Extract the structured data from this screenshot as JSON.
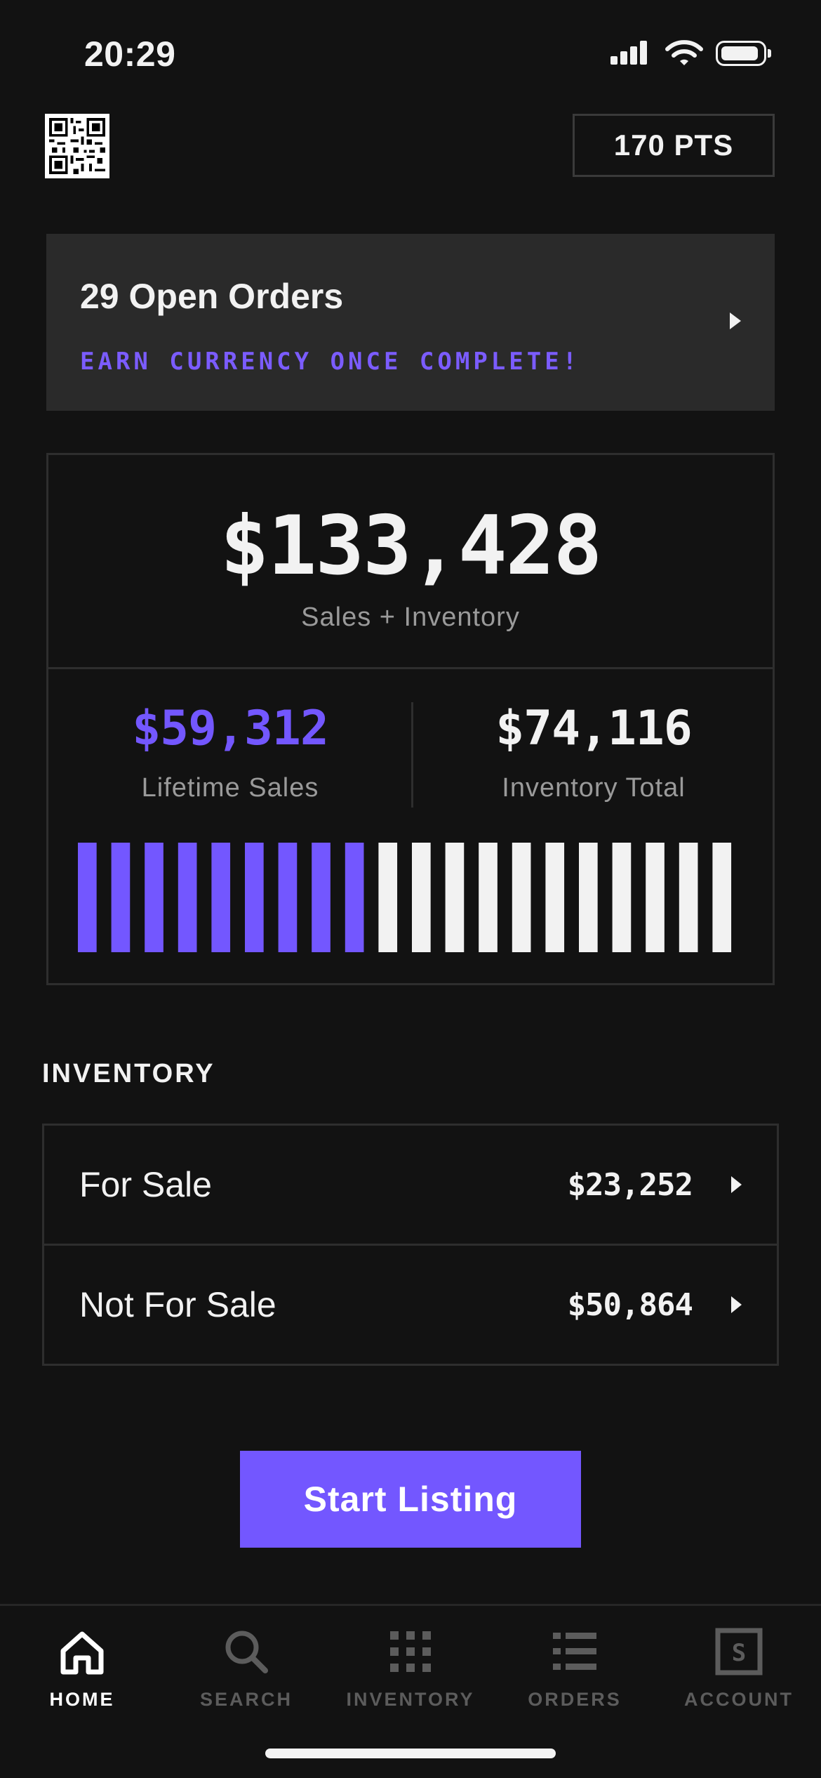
{
  "status_bar": {
    "time": "20:29"
  },
  "header": {
    "points": "170 PTS"
  },
  "orders_banner": {
    "title": "29 Open Orders",
    "subtitle": "EARN CURRENCY ONCE COMPLETE!"
  },
  "summary": {
    "total_value": "$133,428",
    "total_label": "Sales + Inventory",
    "lifetime_sales": {
      "value": "$59,312",
      "label": "Lifetime Sales"
    },
    "inventory_total": {
      "value": "$74,116",
      "label": "Inventory Total"
    },
    "bar_meter": {
      "total_bars": 20,
      "filled_bars": 9,
      "fill_color": "#7357ff",
      "empty_color": "#f2f2f2"
    }
  },
  "inventory": {
    "heading": "INVENTORY",
    "rows": [
      {
        "label": "For Sale",
        "value": "$23,252"
      },
      {
        "label": "Not For Sale",
        "value": "$50,864"
      }
    ]
  },
  "cta": {
    "label": "Start Listing"
  },
  "tabs": [
    {
      "label": "HOME",
      "icon": "home-icon",
      "active": true
    },
    {
      "label": "SEARCH",
      "icon": "search-icon",
      "active": false
    },
    {
      "label": "INVENTORY",
      "icon": "grid-icon",
      "active": false
    },
    {
      "label": "ORDERS",
      "icon": "list-icon",
      "active": false
    },
    {
      "label": "ACCOUNT",
      "icon": "account-icon",
      "active": false
    }
  ],
  "colors": {
    "accent": "#7357ff",
    "background": "#121212",
    "banner": "#2a2a2a",
    "muted_text": "#9a9a9a"
  }
}
